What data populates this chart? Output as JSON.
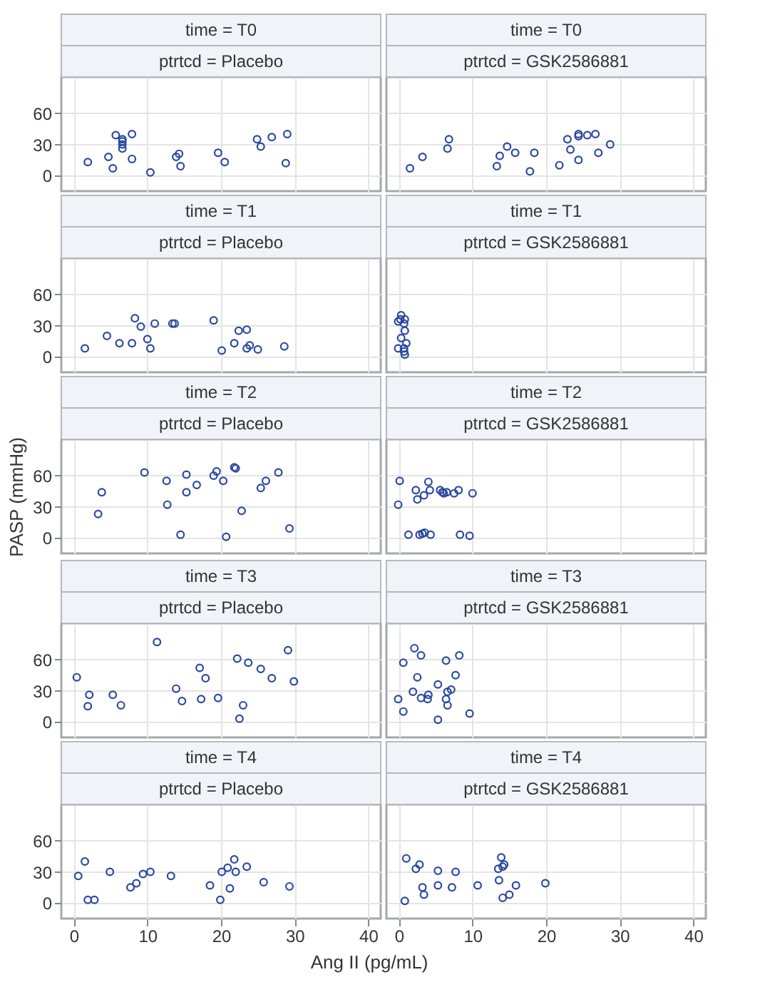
{
  "chart_data": [
    {
      "type": "scatter",
      "title": "time = T0",
      "subtitle": "ptrtcd = Placebo",
      "color": "#2a48a0",
      "marker": "circle",
      "grid": true,
      "xlim": [
        -1.7,
        41.7
      ],
      "ylim": [
        -15,
        95
      ],
      "xticks": [
        0,
        10,
        20,
        30,
        40
      ],
      "yticks": [
        0,
        30,
        60
      ],
      "tick_labels": "y",
      "x": [
        1.9,
        4.7,
        5.3,
        5.7,
        6.6,
        6.6,
        6.6,
        6.6,
        7.9,
        7.9,
        10.4,
        13.9,
        14.3,
        14.5,
        19.6,
        20.5,
        24.9,
        25.4,
        26.9,
        28.8,
        29.0
      ],
      "values": [
        13,
        18,
        7,
        39,
        35,
        33,
        30,
        26,
        40,
        16,
        3,
        18,
        21,
        9,
        22,
        13,
        35,
        28,
        37,
        12,
        40
      ]
    },
    {
      "type": "scatter",
      "title": "time = T0",
      "subtitle": "ptrtcd = GSK2586881",
      "color": "#2a48a0",
      "marker": "circle",
      "grid": true,
      "xlim": [
        -1.7,
        41.7
      ],
      "ylim": [
        -15,
        95
      ],
      "xticks": [
        0,
        10,
        20,
        30,
        40
      ],
      "yticks": [
        0,
        30,
        60
      ],
      "tick_labels": false,
      "x": [
        1.5,
        3.2,
        6.6,
        6.8,
        13.3,
        13.7,
        14.7,
        15.8,
        17.8,
        18.4,
        21.8,
        22.9,
        23.3,
        24.4,
        24.4,
        24.4,
        25.6,
        26.7,
        27.1,
        28.7
      ],
      "values": [
        7,
        18,
        26,
        35,
        9,
        19,
        28,
        22,
        4,
        22,
        10,
        35,
        25,
        40,
        38,
        15,
        39,
        40,
        22,
        30
      ]
    },
    {
      "type": "scatter",
      "title": "time = T1",
      "subtitle": "ptrtcd = Placebo",
      "color": "#2a48a0",
      "marker": "circle",
      "grid": true,
      "xlim": [
        -1.7,
        41.7
      ],
      "ylim": [
        -15,
        95
      ],
      "xticks": [
        0,
        10,
        20,
        30,
        40
      ],
      "yticks": [
        0,
        30,
        60
      ],
      "tick_labels": "y",
      "x": [
        1.5,
        4.5,
        6.2,
        7.9,
        8.3,
        9.1,
        10.0,
        10.4,
        11.0,
        13.4,
        13.7,
        19.0,
        20.1,
        21.8,
        22.4,
        23.5,
        23.5,
        23.9,
        25.0,
        28.6
      ],
      "values": [
        8,
        20,
        13,
        13,
        37,
        29,
        17,
        8,
        32,
        32,
        32,
        35,
        6,
        13,
        25,
        26,
        8,
        11,
        7,
        10
      ]
    },
    {
      "type": "scatter",
      "title": "time = T1",
      "subtitle": "ptrtcd = GSK2586881",
      "color": "#2a48a0",
      "marker": "circle",
      "grid": true,
      "xlim": [
        -1.7,
        41.7
      ],
      "ylim": [
        -15,
        95
      ],
      "xticks": [
        0,
        10,
        20,
        30,
        40
      ],
      "yticks": [
        0,
        30,
        60
      ],
      "tick_labels": false,
      "x": [
        0.3,
        -0.1,
        0.2,
        0.5,
        0.8,
        0.7,
        0.8,
        0.3,
        -0.1,
        1.0,
        0.7,
        0.7,
        0.8
      ],
      "values": [
        40,
        34,
        36,
        null,
        36,
        32,
        25,
        18,
        8,
        13,
        8,
        5,
        2
      ]
    },
    {
      "type": "scatter",
      "title": "time = T2",
      "subtitle": "ptrtcd = Placebo",
      "ylabel": "PASP (mmHg)",
      "color": "#2a48a0",
      "marker": "circle",
      "grid": true,
      "xlim": [
        -1.7,
        41.7
      ],
      "ylim": [
        -15,
        95
      ],
      "xticks": [
        0,
        10,
        20,
        30,
        40
      ],
      "yticks": [
        0,
        30,
        60
      ],
      "tick_labels": "y",
      "x": [
        3.3,
        3.8,
        9.6,
        12.6,
        12.7,
        14.5,
        15.3,
        15.3,
        16.7,
        19.0,
        19.4,
        20.3,
        20.7,
        21.8,
        22.0,
        22.8,
        25.4,
        26.1,
        27.8,
        29.3
      ],
      "values": [
        23,
        44,
        63,
        55,
        32,
        3,
        44,
        61,
        51,
        60,
        64,
        55,
        1,
        68,
        67,
        26,
        48,
        55,
        63,
        9
      ]
    },
    {
      "type": "scatter",
      "title": "time = T2",
      "subtitle": "ptrtcd = GSK2586881",
      "color": "#2a48a0",
      "marker": "circle",
      "grid": true,
      "xlim": [
        -1.7,
        41.7
      ],
      "ylim": [
        -15,
        95
      ],
      "xticks": [
        0,
        10,
        20,
        30,
        40
      ],
      "yticks": [
        0,
        30,
        60
      ],
      "tick_labels": false,
      "x": [
        0.1,
        -0.1,
        1.3,
        2.3,
        2.5,
        2.8,
        3.2,
        3.5,
        3.4,
        4.0,
        4.2,
        4.3,
        5.6,
        5.9,
        6.1,
        6.5,
        7.5,
        8.1,
        8.3,
        9.6,
        10.0
      ],
      "values": [
        55,
        32,
        3,
        46,
        37,
        3,
        4,
        5,
        41,
        54,
        46,
        3,
        46,
        44,
        43,
        44,
        43,
        46,
        3,
        2,
        43
      ]
    },
    {
      "type": "scatter",
      "title": "time = T3",
      "subtitle": "ptrtcd = Placebo",
      "color": "#2a48a0",
      "marker": "circle",
      "grid": true,
      "xlim": [
        -1.7,
        41.7
      ],
      "ylim": [
        -15,
        95
      ],
      "xticks": [
        0,
        10,
        20,
        30,
        40
      ],
      "yticks": [
        0,
        30,
        60
      ],
      "tick_labels": "y",
      "x": [
        0.4,
        2.1,
        1.9,
        5.3,
        6.4,
        11.3,
        13.9,
        14.7,
        17.1,
        17.3,
        17.9,
        19.6,
        22.2,
        22.5,
        23.0,
        23.7,
        25.4,
        26.9,
        29.1,
        29.9
      ],
      "values": [
        43,
        26,
        15,
        26,
        16,
        77,
        32,
        20,
        52,
        22,
        42,
        23,
        61,
        3,
        16,
        57,
        51,
        42,
        69,
        39
      ]
    },
    {
      "type": "scatter",
      "title": "time = T3",
      "subtitle": "ptrtcd = GSK2586881",
      "color": "#2a48a0",
      "marker": "circle",
      "grid": true,
      "xlim": [
        -1.7,
        41.7
      ],
      "ylim": [
        -15,
        95
      ],
      "xticks": [
        0,
        10,
        20,
        30,
        40
      ],
      "yticks": [
        0,
        30,
        60
      ],
      "tick_labels": false,
      "x": [
        -0.1,
        0.6,
        0.6,
        1.9,
        2.1,
        2.5,
        3.0,
        3.0,
        3.9,
        4.0,
        5.3,
        5.3,
        6.4,
        6.4,
        6.6,
        6.6,
        7.1,
        7.7,
        8.2,
        9.6
      ],
      "values": [
        22,
        57,
        10,
        29,
        71,
        43,
        64,
        23,
        22,
        26,
        36,
        2,
        59,
        22,
        16,
        29,
        31,
        45,
        64,
        8
      ]
    },
    {
      "type": "scatter",
      "title": "time = T4",
      "subtitle": "ptrtcd = Placebo",
      "xlabel": "Ang II (pg/mL)",
      "color": "#2a48a0",
      "marker": "circle",
      "grid": true,
      "xlim": [
        -1.7,
        41.7
      ],
      "ylim": [
        -15,
        95
      ],
      "xticks": [
        0,
        10,
        20,
        30,
        40
      ],
      "yticks": [
        0,
        30,
        60
      ],
      "x": [
        0.6,
        1.5,
        1.9,
        2.8,
        4.9,
        7.7,
        8.5,
        9.4,
        10.4,
        13.2,
        18.5,
        19.9,
        20.1,
        20.9,
        21.2,
        21.8,
        22.0,
        23.5,
        25.8,
        29.3
      ],
      "values": [
        26,
        40,
        3,
        3,
        30,
        15,
        19,
        28,
        30,
        26,
        17,
        3,
        30,
        34,
        14,
        42,
        30,
        35,
        20,
        16
      ]
    },
    {
      "type": "scatter",
      "title": "time = T4",
      "subtitle": "ptrtcd = GSK2586881",
      "color": "#2a48a0",
      "marker": "circle",
      "grid": true,
      "xlim": [
        -1.7,
        41.7
      ],
      "ylim": [
        -15,
        95
      ],
      "xticks": [
        0,
        10,
        20,
        30,
        40
      ],
      "yticks": [
        0,
        30,
        60
      ],
      "tick_labels": "x",
      "x": [
        0.8,
        1.0,
        2.3,
        2.8,
        3.2,
        3.4,
        5.3,
        5.3,
        7.2,
        7.7,
        10.7,
        13.5,
        13.6,
        13.9,
        14.1,
        14.1,
        14.3,
        15.0,
        15.9,
        19.9
      ],
      "values": [
        2,
        43,
        33,
        37,
        15,
        8,
        31,
        17,
        15,
        30,
        17,
        33,
        22,
        44,
        5,
        35,
        37,
        8,
        17,
        19
      ]
    }
  ]
}
